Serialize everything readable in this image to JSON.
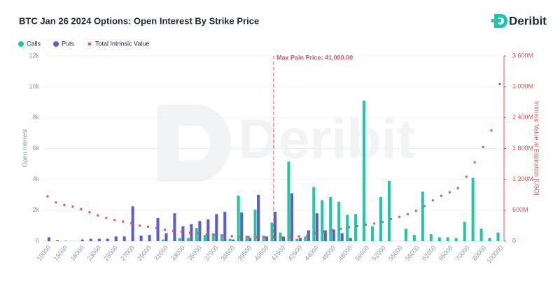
{
  "brand": "Deribit",
  "chart_data": {
    "type": "bar",
    "title": "BTC Jan 26 2024 Options: Open Interest By Strike Price",
    "watermark": "Deribit",
    "y_label": "Open Interest",
    "y2_label": "Intrinsic Value at Expiration [USD]",
    "annotation": {
      "text": "Max Pain Price: 41,000.00",
      "value": 41000
    },
    "categories": [
      "10000",
      null,
      "15000",
      null,
      "18000",
      null,
      "23000",
      null,
      "25000",
      null,
      "27000",
      null,
      "29000",
      null,
      "31000",
      null,
      "33000",
      null,
      "35000",
      null,
      "37000",
      null,
      "38500",
      null,
      "39500",
      null,
      "40500",
      null,
      "41500",
      null,
      "42500",
      null,
      "44000",
      null,
      "46000",
      null,
      "48000",
      null,
      "50000",
      null,
      "52000",
      null,
      "55000",
      null,
      "58000",
      null,
      "62000",
      null,
      "65000",
      null,
      "70000",
      null,
      "80000",
      null,
      "100000"
    ],
    "series": [
      {
        "name": "Calls",
        "color": "#1fc7a8",
        "values": [
          0,
          0,
          0,
          0,
          0,
          0,
          0,
          0,
          0,
          0,
          0,
          0,
          0,
          0,
          100,
          0,
          200,
          200,
          850,
          400,
          500,
          450,
          150,
          2950,
          350,
          2050,
          350,
          1200,
          550,
          5150,
          150,
          300,
          3500,
          2650,
          2850,
          2550,
          1700,
          1750,
          9100,
          950,
          2850,
          3900,
          0,
          800,
          400,
          3200,
          450,
          250,
          250,
          200,
          1250,
          4100,
          800,
          200,
          550
        ]
      },
      {
        "name": "Puts",
        "color": "#5b5bd6",
        "values": [
          250,
          50,
          20,
          0,
          100,
          150,
          150,
          150,
          300,
          300,
          2250,
          350,
          400,
          1500,
          500,
          1800,
          950,
          1100,
          1300,
          1400,
          1750,
          1900,
          100,
          1850,
          200,
          3000,
          300,
          1900,
          300,
          3100,
          200,
          700,
          1800,
          700,
          750,
          500,
          200,
          0,
          0,
          0,
          0,
          0,
          0,
          0,
          0,
          0,
          0,
          0,
          0,
          0,
          0,
          0,
          0,
          0,
          0
        ]
      },
      {
        "name": "Total Intrinsic Value",
        "color": "#e05555",
        "type": "scatter",
        "axis": "y2",
        "values": [
          870000000,
          750000000,
          700000000,
          670000000,
          620000000,
          560000000,
          500000000,
          450000000,
          410000000,
          380000000,
          350000000,
          300000000,
          280000000,
          250000000,
          220000000,
          200000000,
          180000000,
          160000000,
          150000000,
          130000000,
          120000000,
          100000000,
          95000000,
          85000000,
          80000000,
          75000000,
          70000000,
          65000000,
          70000000,
          80000000,
          90000000,
          110000000,
          150000000,
          180000000,
          210000000,
          240000000,
          270000000,
          290000000,
          320000000,
          340000000,
          370000000,
          430000000,
          470000000,
          520000000,
          590000000,
          680000000,
          790000000,
          880000000,
          950000000,
          1030000000,
          1250000000,
          1530000000,
          1830000000,
          2150000000,
          3050000000
        ]
      }
    ],
    "ylim": [
      0,
      12000
    ],
    "yticks": [
      0,
      {
        "value": 2000,
        "label": "2k"
      },
      {
        "value": 4000,
        "label": "4k"
      },
      {
        "value": 6000,
        "label": "6k"
      },
      {
        "value": 8000,
        "label": "8k"
      },
      {
        "value": 10000,
        "label": "10k"
      },
      {
        "value": 12000,
        "label": "12k"
      }
    ],
    "y2lim": [
      0,
      3600000000
    ],
    "y2ticks": [
      0,
      {
        "value": 600000000,
        "label": "600M"
      },
      {
        "value": 1200000000,
        "label": "1 200M"
      },
      {
        "value": 1800000000,
        "label": "1 800M"
      },
      {
        "value": 2400000000,
        "label": "2 400M"
      },
      {
        "value": 3000000000,
        "label": "3 000M"
      },
      {
        "value": 3600000000,
        "label": "3 600M"
      }
    ],
    "grid": true,
    "legend": "top-left"
  }
}
